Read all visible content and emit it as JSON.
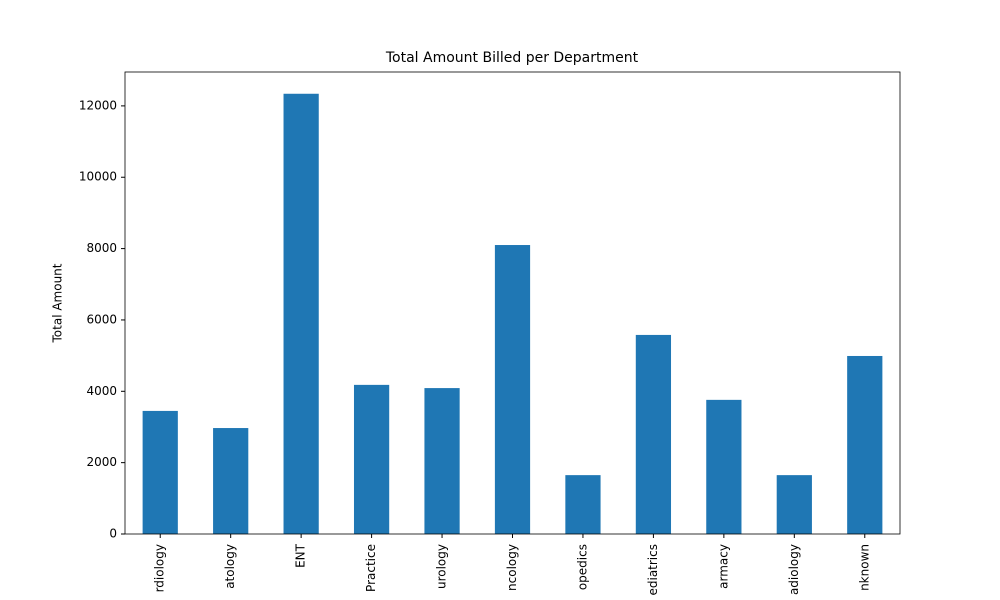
{
  "chart_data": {
    "type": "bar",
    "title": "Total Amount Billed per Department",
    "y_label": "Total Amount",
    "categories": [
      "rdiology",
      "atology",
      "ENT",
      "Practice",
      "urology",
      "ncology",
      "opedics",
      "ediatrics",
      "armacy",
      "adiology",
      "nknown"
    ],
    "values": [
      3450,
      2970,
      12340,
      4180,
      4090,
      8100,
      1650,
      5580,
      3760,
      1650,
      4990
    ],
    "color": "#1f77b4",
    "ylim": [
      0,
      12950
    ],
    "yticks": [
      0,
      2000,
      4000,
      6000,
      8000,
      10000,
      12000
    ]
  }
}
